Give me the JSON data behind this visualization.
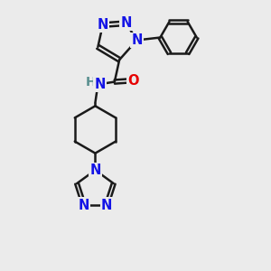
{
  "bg_color": "#ebebeb",
  "bond_color": "#1a1a1a",
  "N_color": "#1414e6",
  "O_color": "#e60000",
  "H_color": "#5a9090",
  "line_width": 1.8,
  "font_size": 10.5,
  "fig_size": [
    3.0,
    3.0
  ],
  "dpi": 100,
  "xlim": [
    0,
    10
  ],
  "ylim": [
    0,
    10
  ]
}
